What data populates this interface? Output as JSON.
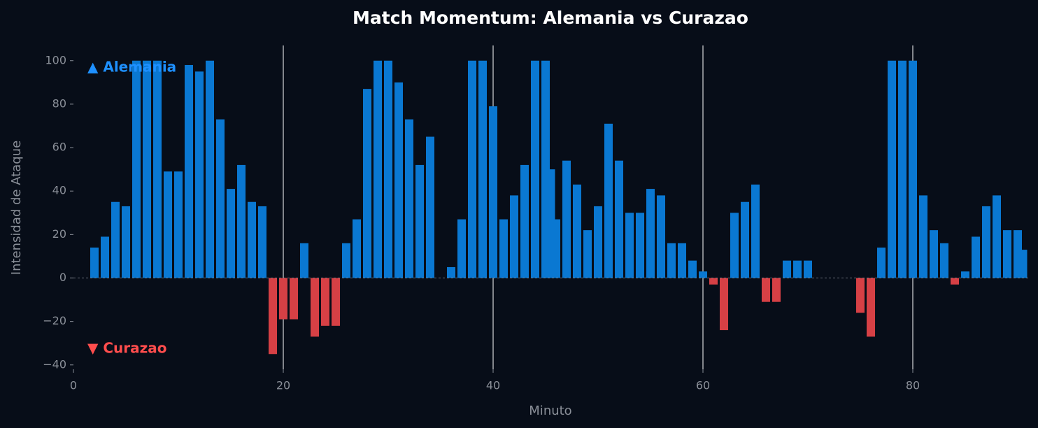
{
  "chart_data": {
    "type": "bar",
    "title": "Match Momentum: Alemania vs Curazao",
    "x_label": "Minuto",
    "y_label": "Intensidad de Ataque",
    "x": [
      2,
      3,
      4,
      5,
      6,
      7,
      8,
      9,
      10,
      11,
      12,
      13,
      14,
      15,
      16,
      17,
      18,
      19,
      20,
      21,
      22,
      23,
      24,
      25,
      26,
      27,
      28,
      29,
      30,
      31,
      32,
      33,
      34,
      36,
      37,
      38,
      39,
      40,
      41,
      42,
      43,
      44,
      45,
      45.5,
      46,
      47,
      48,
      49,
      50,
      51,
      52,
      53,
      54,
      55,
      56,
      57,
      58,
      59,
      60,
      61,
      62,
      63,
      64,
      65,
      66,
      67,
      68,
      69,
      70,
      75,
      76,
      77,
      78,
      79,
      80,
      81,
      82,
      83,
      84,
      85,
      86,
      87,
      88,
      89,
      90,
      90.5
    ],
    "values": [
      14,
      19,
      35,
      33,
      100,
      100,
      100,
      49,
      49,
      98,
      95,
      100,
      73,
      41,
      52,
      35,
      33,
      -35,
      -19,
      -19,
      16,
      -27,
      -22,
      -22,
      16,
      27,
      87,
      100,
      100,
      90,
      73,
      52,
      65,
      5,
      27,
      100,
      100,
      79,
      27,
      38,
      52,
      100,
      100,
      50,
      27,
      54,
      43,
      22,
      33,
      71,
      54,
      30,
      30,
      41,
      38,
      16,
      16,
      8,
      3,
      -3,
      -24,
      30,
      35,
      43,
      -11,
      -11,
      8,
      8,
      8,
      -16,
      -27,
      14,
      100,
      100,
      100,
      38,
      22,
      16,
      -3,
      3,
      19,
      33,
      38,
      22,
      22,
      13
    ],
    "positive_color": "#0a78d2",
    "negative_color": "#d64045",
    "annotations": [
      {
        "text": "▲ Alemania",
        "color": "#1e90ff"
      },
      {
        "text": "▼ Curazao",
        "color": "#ff4d4d"
      }
    ],
    "xlim": [
      0,
      91
    ],
    "ylim": [
      -42,
      107
    ],
    "xticks": [
      0,
      20,
      40,
      60,
      80
    ],
    "yticks": [
      {
        "value": -40,
        "label": "−40"
      },
      {
        "value": -20,
        "label": "−20"
      },
      0,
      20,
      40,
      60,
      80,
      100
    ],
    "xgrid": true,
    "zero_line": true
  }
}
